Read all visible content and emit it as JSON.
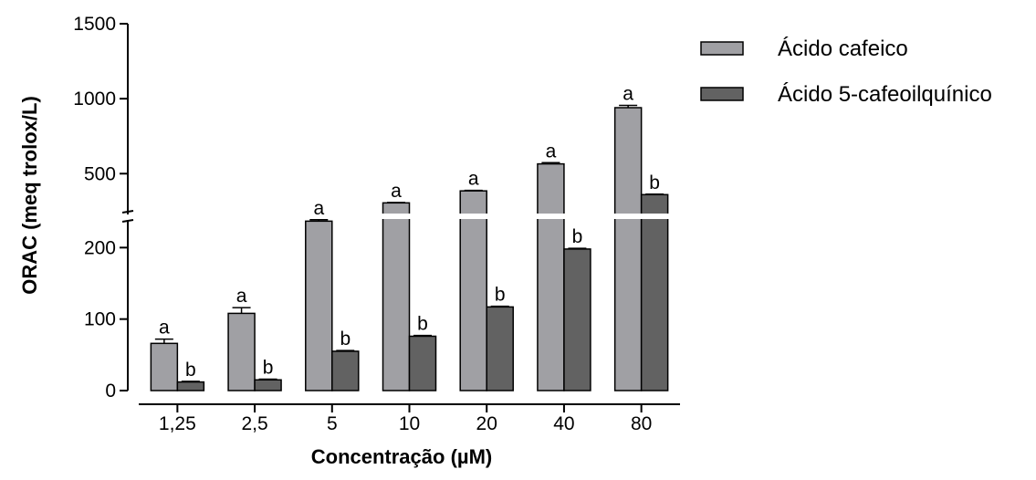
{
  "chart_data": {
    "type": "bar",
    "xlabel": "Concentração (µM)",
    "ylabel": "ORAC (meq trolox/L)",
    "categories": [
      "1,25",
      "2,5",
      "5",
      "10",
      "20",
      "40",
      "80"
    ],
    "series": [
      {
        "name": "Ácido cafeico",
        "color": "#a0a0a4",
        "values": [
          66,
          108,
          237,
          305,
          385,
          565,
          940
        ],
        "errors": [
          6,
          8,
          2,
          3,
          3,
          8,
          15
        ],
        "significance": [
          "a",
          "a",
          "a",
          "a",
          "a",
          "a",
          "a"
        ]
      },
      {
        "name": "Ácido 5-cafeoilquínico",
        "color": "#626262",
        "values": [
          12,
          15,
          55,
          76,
          117,
          198,
          360
        ],
        "errors": [
          1,
          1,
          1,
          1,
          1,
          1,
          3
        ],
        "significance": [
          "b",
          "b",
          "b",
          "b",
          "b",
          "b",
          "b"
        ]
      }
    ],
    "axis_break": {
      "lower_range": [
        0,
        240
      ],
      "upper_range": [
        240,
        1500
      ]
    },
    "yticks_lower": [
      0,
      100,
      200
    ],
    "yticks_upper": [
      500,
      1000,
      1500
    ],
    "legend_position": "top-right",
    "grid": false
  }
}
